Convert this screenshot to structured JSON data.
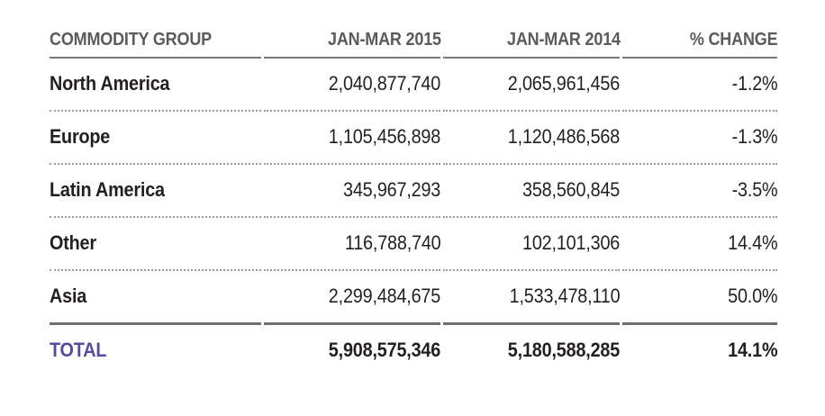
{
  "table": {
    "header": {
      "commodity_group": "COMMODITY GROUP",
      "jan_mar_2015": "JAN-MAR 2015",
      "jan_mar_2014": "JAN-MAR 2014",
      "pct_change": "% CHANGE"
    },
    "rows": [
      {
        "group": "North America",
        "v2015": "2,040,877,740",
        "v2014": "2,065,961,456",
        "change": "-1.2%"
      },
      {
        "group": "Europe",
        "v2015": "1,105,456,898",
        "v2014": "1,120,486,568",
        "change": "-1.3%"
      },
      {
        "group": "Latin America",
        "v2015": "345,967,293",
        "v2014": "358,560,845",
        "change": "-3.5%"
      },
      {
        "group": "Other",
        "v2015": "116,788,740",
        "v2014": "102,101,306",
        "change": "14.4%"
      },
      {
        "group": "Asia",
        "v2015": "2,299,484,675",
        "v2014": "1,533,478,110",
        "change": "50.0%"
      }
    ],
    "total": {
      "label": "TOTAL",
      "v2015": "5,908,575,346",
      "v2014": "5,180,588,285",
      "change": "14.1%"
    }
  },
  "colors": {
    "body_text": "#231f20",
    "header_text": "#5a5b5e",
    "header_rule": "#77787b",
    "row_divider": "#9b9da0",
    "total_rule": "#6d6e71",
    "total_label": "#5b4b9d"
  },
  "chart_data": {
    "type": "table",
    "title": "",
    "columns": [
      "COMMODITY GROUP",
      "JAN-MAR 2015",
      "JAN-MAR 2014",
      "% CHANGE"
    ],
    "rows": [
      [
        "North America",
        2040877740,
        2065961456,
        -1.2
      ],
      [
        "Europe",
        1105456898,
        1120486568,
        -1.3
      ],
      [
        "Latin America",
        345967293,
        358560845,
        -3.5
      ],
      [
        "Other",
        116788740,
        102101306,
        14.4
      ],
      [
        "Asia",
        2299484675,
        1533478110,
        50.0
      ],
      [
        "TOTAL",
        5908575346,
        5180588285,
        14.1
      ]
    ],
    "layout": {
      "label_column_align": "left",
      "value_columns_align": "right",
      "header_rule": "solid",
      "row_divider": "dotted",
      "total_rule": "thick-solid"
    }
  }
}
